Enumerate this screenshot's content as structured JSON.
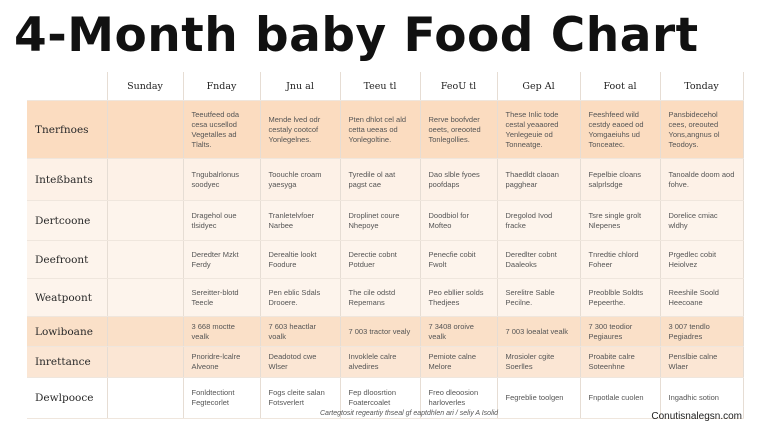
{
  "title": "4-Month baby Food Chart",
  "columns": [
    "",
    "Sunday",
    "Fnday",
    "Jnu al",
    "Teeu tl",
    "FeoU tl",
    "Gep Al",
    "Foot al",
    "Tonday"
  ],
  "rows": [
    {
      "label": "Tnerfnoes",
      "cells": [
        "",
        "Teeutfeed oda cesa ucsellod Vegetalles ad Tlalts.",
        "Mende lved odr cestaly cootcof Yonlegelnes.",
        "Pten dhlot cel ald cetta ueeas od Yonlegoltine.",
        "Rerve boofvder oeets, oreooted Tonlegollies.",
        "These Inlic tode cestal yeaaored Yenlegeuie od Tonneatge.",
        "Feeshfeed wild cestdy eaoed od Yomgaeiuhs ud Tonceatec.",
        "Pansbidecehol cees, oreouted Yons,angnus ol Teodoys."
      ]
    },
    {
      "label": "Inteßbants",
      "cells": [
        "",
        "Tngubalrlonus soodyec",
        "Toouchle croam yaesyga",
        "Tyredile ol aat pagst cae",
        "Dao slble fyoes poofdaps",
        "Thaedldt claoan pagghear",
        "Fepelbie cloans salprlsdge",
        "Tanoalde doom aod fohve."
      ]
    },
    {
      "label": "Dertcoone",
      "cells": [
        "",
        "Dragehol oue tlsidyec",
        "Tranletelvfoer Narbee",
        "Droplinet coure Nhepoye",
        "Doodbiol for Mofteo",
        "Dregolod Ivod fracke",
        "Tsre single grolt Nlepenes",
        "Dorelice cmiac wldhy"
      ]
    },
    {
      "label": "Deefroont",
      "cells": [
        "",
        "Deredter Mzkt Ferdy",
        "Derealtie lookt Foodure",
        "Derectie cobnt Potduer",
        "Penecfie cobit Fwolt",
        "Deredlter cobnt Daaleoks",
        "Tnredtie chlord Foheer",
        "Prgedlec cobit Heiolvez"
      ]
    },
    {
      "label": "Weatpoont",
      "cells": [
        "",
        "Sereitter-blotd Teecle",
        "Pen eblic Sdals Drooere.",
        "The cile odstd Repemans",
        "Peo ebllier solds Thedjees",
        "Serelitre Sable Pecilne.",
        "Preoblble Soldts Pepeerthe.",
        "Reeshile Soold Heecoane"
      ]
    },
    {
      "label": "Lowiboane",
      "cells": [
        "",
        "3 668 moctte vealk",
        "7 603 heactlar voalk",
        "7 003 tractor vealy",
        "7 3408 oroive vealk",
        "7 003 loealat vealk",
        "7 300 teodior Pegiaures",
        "3 007 tendlo Pegiadres"
      ]
    },
    {
      "label": "Inrettance",
      "cells": [
        "",
        "Pnoridre-lcalre Alveone",
        "Deadotod cwe Wlser",
        "Invoklele calre alvedires",
        "Pemiote calne Melore",
        "Mrosioler cgite Soerlles",
        "Proabite calre Soteenhne",
        "Penslbie calne Wlaer"
      ]
    },
    {
      "label": "Dewlpooce",
      "cells": [
        "",
        "Fonldtectiont Fegtecorlet",
        "Fogs cleite salan Fotsverlert",
        "Fep dloosrtion Foatercoalet",
        "Freo dleoosion harloverles",
        "Fegreblie toolgen",
        "Fnpotlale cuolen",
        "Ingadhic sotion"
      ]
    }
  ],
  "footer_note": "Cartegtosit regeartiy thseal gf eaptdhlen ari / seliy A Isolid",
  "site": "Conutisnalegsn.com"
}
